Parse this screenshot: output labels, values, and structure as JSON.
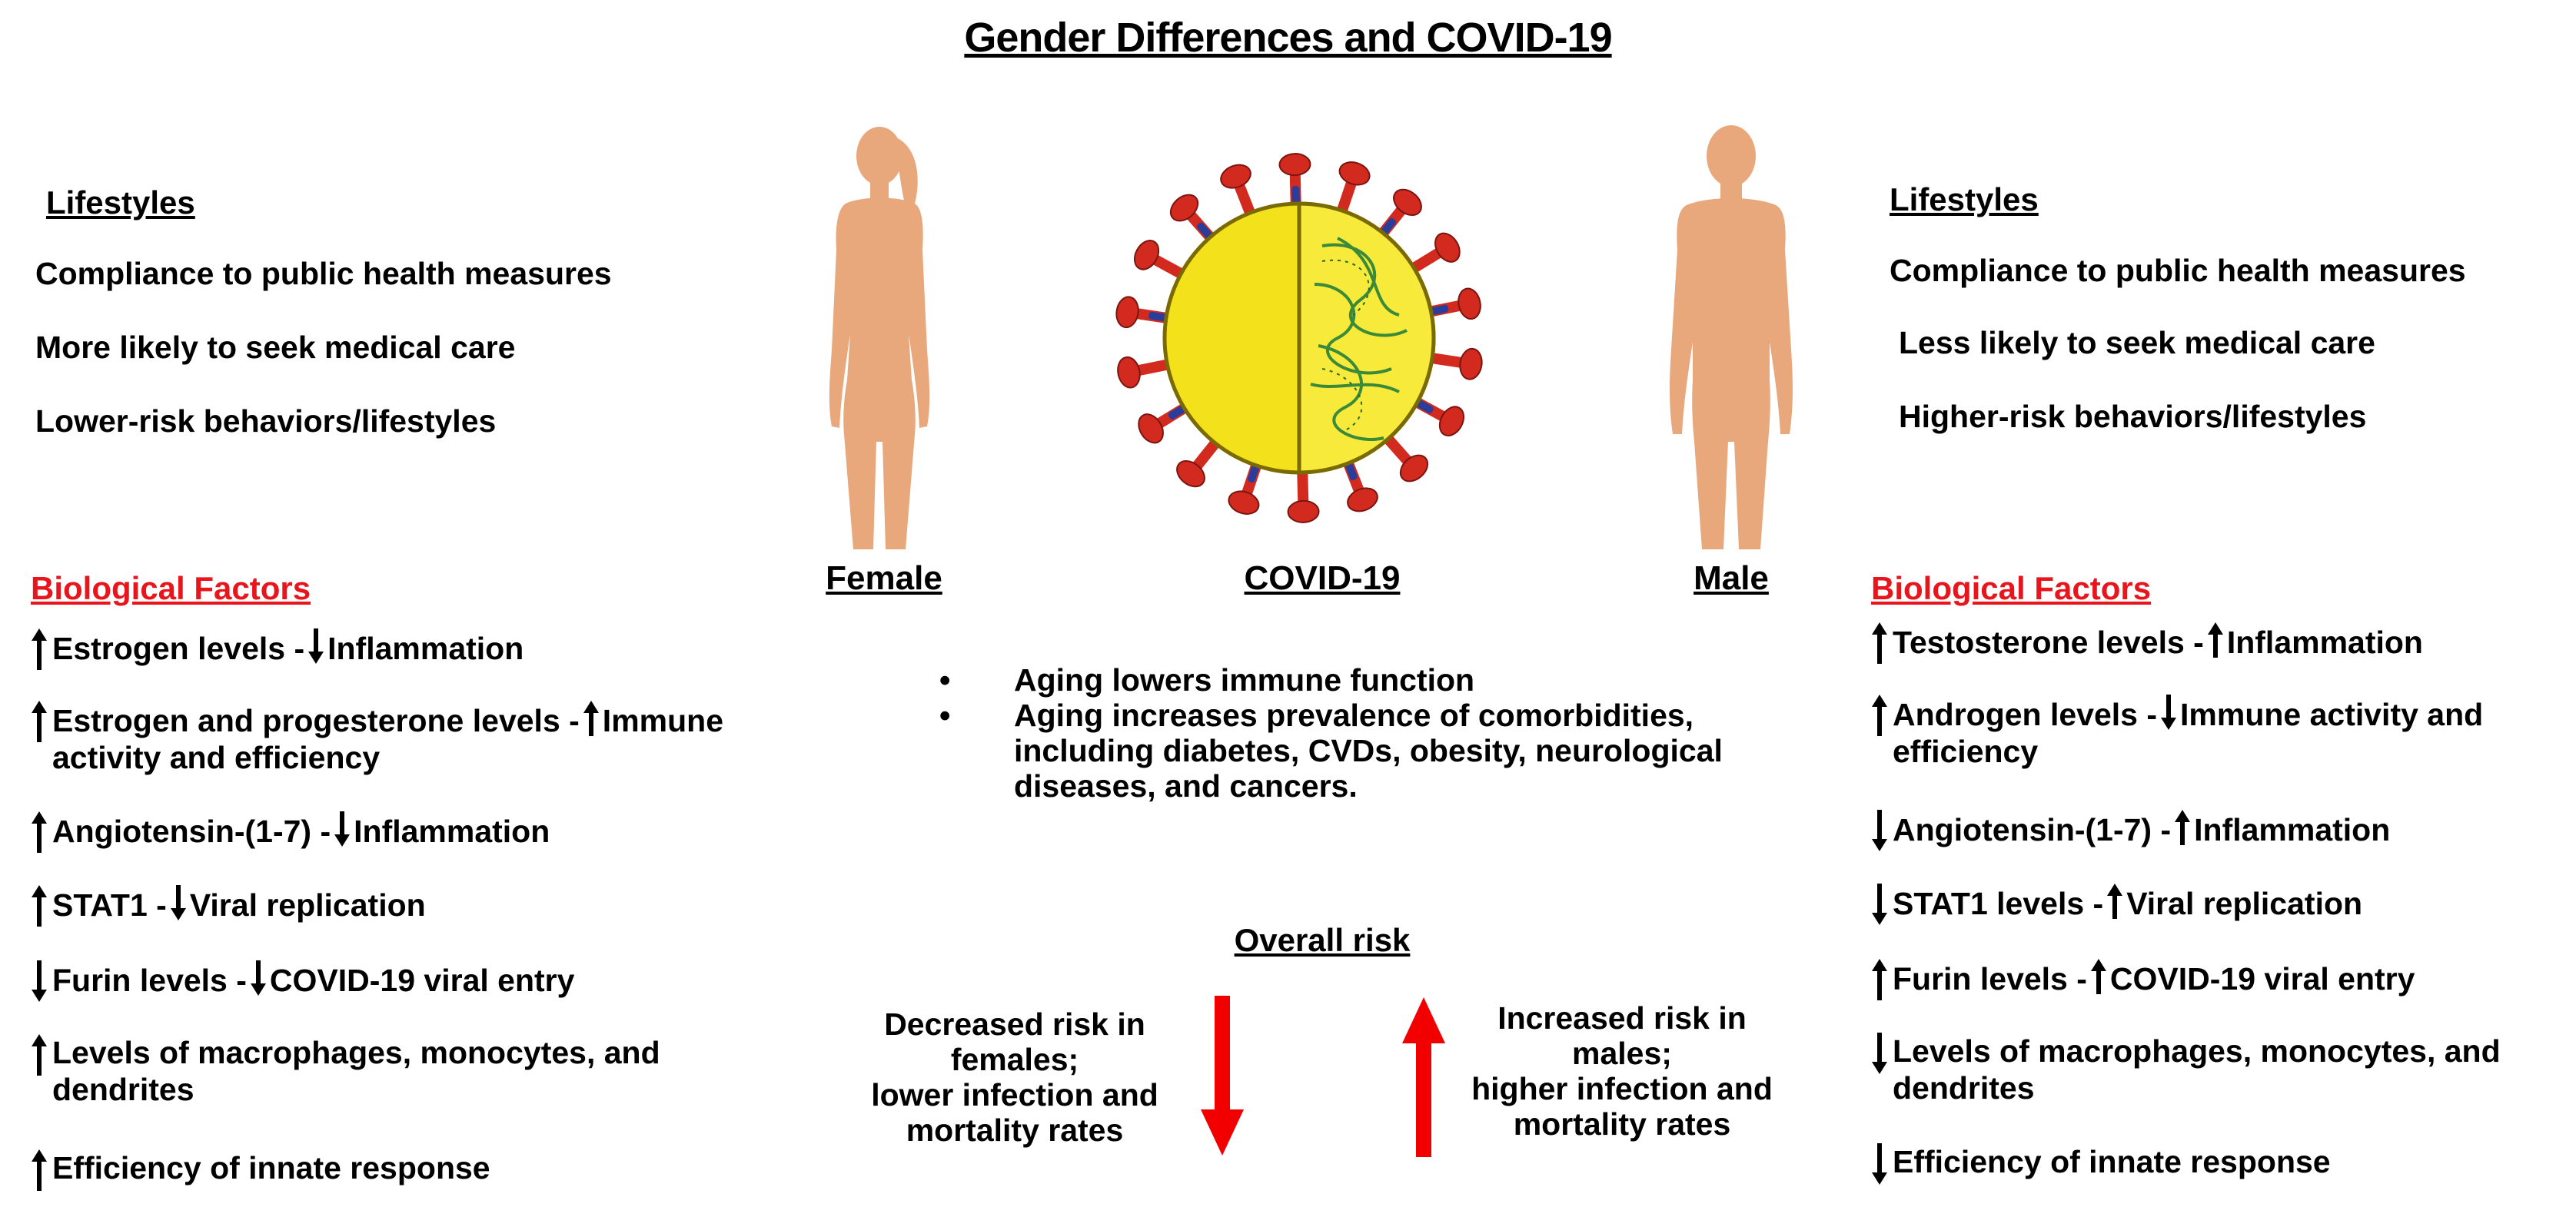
{
  "title": "Gender Differences and COVID-19",
  "female": {
    "label": "Female",
    "lifestyles_heading": "Lifestyles",
    "lifestyles": [
      "Compliance to public health measures",
      "More likely to seek medical care",
      "Lower-risk behaviors/lifestyles"
    ],
    "bio_heading": "Biological Factors",
    "bio": [
      {
        "a": "Estrogen levels -",
        "b": "Inflammation",
        "dir1": "up",
        "dir2": "down"
      },
      {
        "a": "Estrogen and progesterone levels -",
        "b": "Immune",
        "c": "activity and efficiency",
        "dir1": "up",
        "dir2": "up"
      },
      {
        "a": "Angiotensin-(1-7) -",
        "b": "Inflammation",
        "dir1": "up",
        "dir2": "down"
      },
      {
        "a": "STAT1 -",
        "b": "Viral replication",
        "dir1": "up",
        "dir2": "down"
      },
      {
        "a": "Furin levels -",
        "b": "COVID-19 viral entry",
        "dir1": "down",
        "dir2": "down"
      },
      {
        "a": "Levels of macrophages, monocytes, and",
        "c": "dendrites",
        "dir1": "up"
      },
      {
        "a": "Efficiency of innate response",
        "dir1": "up"
      }
    ]
  },
  "male": {
    "label": "Male",
    "lifestyles_heading": "Lifestyles",
    "lifestyles": [
      "Compliance to public health measures",
      "Less likely to seek medical care",
      "Higher-risk behaviors/lifestyles"
    ],
    "bio_heading": "Biological Factors",
    "bio": [
      {
        "a": "Testosterone levels -",
        "b": "Inflammation",
        "dir1": "up",
        "dir2": "up"
      },
      {
        "a": "Androgen levels -",
        "b": "Immune activity and",
        "c": "efficiency",
        "dir1": "up",
        "dir2": "down"
      },
      {
        "a": "Angiotensin-(1-7) -",
        "b": "Inflammation",
        "dir1": "down",
        "dir2": "up"
      },
      {
        "a": "STAT1 levels -",
        "b": "Viral replication",
        "dir1": "down",
        "dir2": "up"
      },
      {
        "a": "Furin levels -",
        "b": "COVID-19 viral entry",
        "dir1": "up",
        "dir2": "up"
      },
      {
        "a": "Levels of macrophages, monocytes, and",
        "c": "dendrites",
        "dir1": "down"
      },
      {
        "a": "Efficiency of innate response",
        "dir1": "down"
      }
    ]
  },
  "covid": {
    "label": "COVID-19",
    "bullet_char": "•",
    "bullets": [
      "Aging lowers immune function",
      "Aging increases prevalence of comorbidities, including diabetes, CVDs, obesity, neurological diseases, and cancers."
    ]
  },
  "risk": {
    "heading": "Overall risk",
    "female_lines": [
      "Decreased risk in",
      "females;",
      "lower infection and",
      "mortality rates"
    ],
    "male_lines": [
      "Increased risk in",
      "males;",
      "higher infection and",
      "mortality rates"
    ]
  },
  "colors": {
    "skin": "#e8a87c",
    "virus_yellow": "#f3e21b",
    "virus_red": "#d22a1e",
    "virus_blue": "#2b3d9a",
    "risk_red": "#f20000",
    "heading_red": "#e8161c"
  }
}
